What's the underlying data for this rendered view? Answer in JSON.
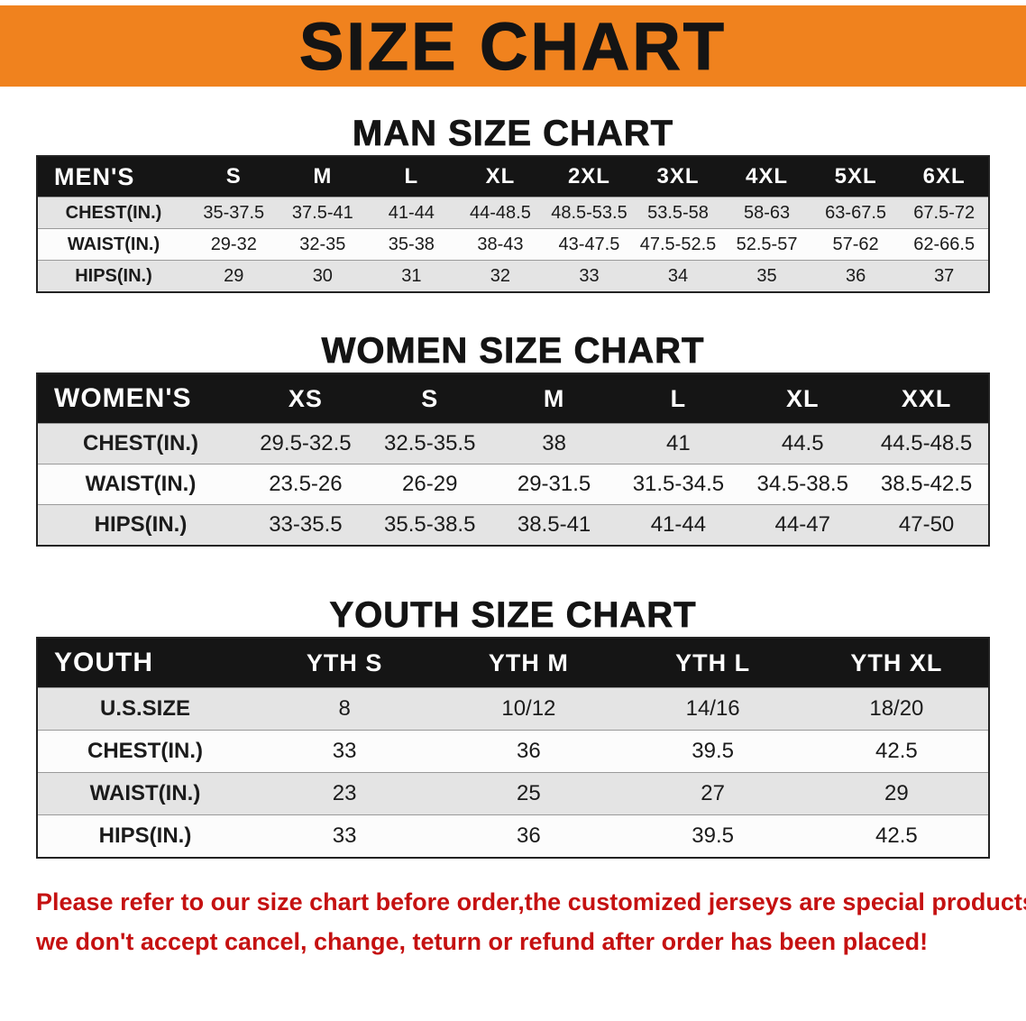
{
  "banner": {
    "title": "SIZE CHART",
    "bg_color": "#F0821E",
    "text_color": "#141414"
  },
  "chart_data": [
    {
      "type": "table",
      "title": "MAN SIZE CHART",
      "columns": [
        "MEN'S",
        "S",
        "M",
        "L",
        "XL",
        "2XL",
        "3XL",
        "4XL",
        "5XL",
        "6XL"
      ],
      "rows": [
        [
          "CHEST(IN.)",
          "35-37.5",
          "37.5-41",
          "41-44",
          "44-48.5",
          "48.5-53.5",
          "53.5-58",
          "58-63",
          "63-67.5",
          "67.5-72"
        ],
        [
          "WAIST(IN.)",
          "29-32",
          "32-35",
          "35-38",
          "38-43",
          "43-47.5",
          "47.5-52.5",
          "52.5-57",
          "57-62",
          "62-66.5"
        ],
        [
          "HIPS(IN.)",
          "29",
          "30",
          "31",
          "32",
          "33",
          "34",
          "35",
          "36",
          "37"
        ]
      ]
    },
    {
      "type": "table",
      "title": "WOMEN SIZE CHART",
      "columns": [
        "WOMEN'S",
        "XS",
        "S",
        "M",
        "L",
        "XL",
        "XXL"
      ],
      "rows": [
        [
          "CHEST(IN.)",
          "29.5-32.5",
          "32.5-35.5",
          "38",
          "41",
          "44.5",
          "44.5-48.5"
        ],
        [
          "WAIST(IN.)",
          "23.5-26",
          "26-29",
          "29-31.5",
          "31.5-34.5",
          "34.5-38.5",
          "38.5-42.5"
        ],
        [
          "HIPS(IN.)",
          "33-35.5",
          "35.5-38.5",
          "38.5-41",
          "41-44",
          "44-47",
          "47-50"
        ]
      ]
    },
    {
      "type": "table",
      "title": "YOUTH SIZE CHART",
      "columns": [
        "YOUTH",
        "YTH S",
        "YTH M",
        "YTH L",
        "YTH XL"
      ],
      "rows": [
        [
          "U.S.SIZE",
          "8",
          "10/12",
          "14/16",
          "18/20"
        ],
        [
          "CHEST(IN.)",
          "33",
          "36",
          "39.5",
          "42.5"
        ],
        [
          "WAIST(IN.)",
          "23",
          "25",
          "27",
          "29"
        ],
        [
          "HIPS(IN.)",
          "33",
          "36",
          "39.5",
          "42.5"
        ]
      ]
    }
  ],
  "footer": {
    "color": "#C51111",
    "lines": [
      "Please refer to our size chart before order,the customized jerseys are special products,",
      "we don't accept cancel, change, teturn or refund after order has been placed!"
    ]
  }
}
